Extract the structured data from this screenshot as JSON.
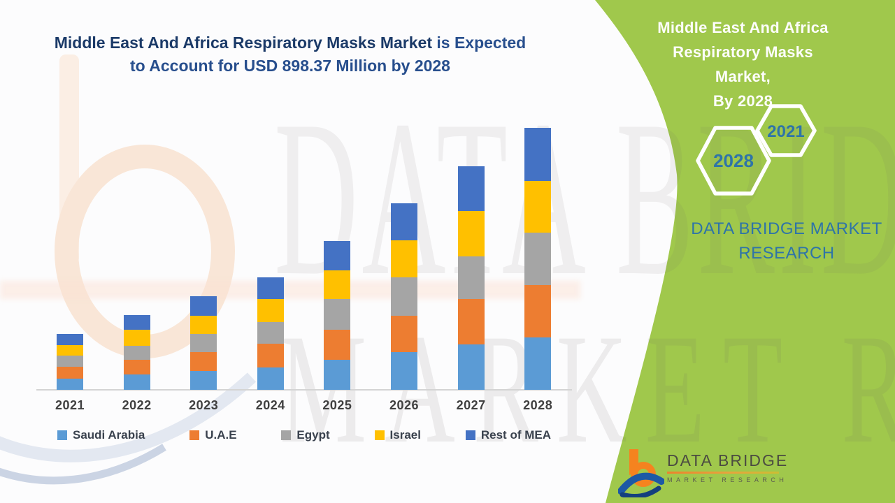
{
  "page": {
    "background": "#FCFCFD",
    "accent_green": "#A0C84C",
    "accent_steel_blue": "#2E74A8"
  },
  "heading": {
    "line1_strong": "Middle East And Africa Respiratory Masks Market",
    "line1_rest": " is Expected",
    "line2": "to Account for USD 898.37 Million by 2028",
    "strong_color": "#1B3A68",
    "rest_color": "#274E8D"
  },
  "chart_data": {
    "type": "bar",
    "stacked": true,
    "unit": "USD Million",
    "title": "Middle East And Africa Respiratory Masks Market, By 2028",
    "categories": [
      "2021",
      "2022",
      "2023",
      "2024",
      "2025",
      "2026",
      "2027",
      "2028"
    ],
    "series": [
      {
        "name": "Saudi Arabia",
        "color": "#5B9BD5",
        "values": [
          38.3,
          51.7,
          64.6,
          76.5,
          103.5,
          129.1,
          157.1,
          181.0
        ]
      },
      {
        "name": "U.A.E",
        "color": "#ED7D31",
        "values": [
          41.4,
          51.9,
          65.3,
          82.7,
          102.8,
          125.0,
          153.7,
          179.4
        ]
      },
      {
        "name": "Egypt",
        "color": "#A5A5A5",
        "values": [
          38.3,
          48.5,
          61.4,
          72.7,
          106.2,
          131.5,
          147.5,
          179.3
        ]
      },
      {
        "name": "Israel",
        "color": "#FFC000",
        "values": [
          35.1,
          55.0,
          63.6,
          78.9,
          97.1,
          127.7,
          155.4,
          177.7
        ]
      },
      {
        "name": "Rest of MEA",
        "color": "#4472C4",
        "values": [
          39.0,
          49.5,
          67.9,
          75.6,
          102.1,
          127.4,
          153.0,
          181.0
        ]
      }
    ],
    "totals_estimated": [
      192.1,
      256.6,
      322.8,
      386.4,
      511.7,
      640.7,
      766.7,
      898.37
    ],
    "highlight_total_2028": "USD 898.37 Million",
    "legend_position": "bottom",
    "value_axis_visible": false,
    "gridlines": false
  },
  "side_panel": {
    "title_lines": [
      "Middle East And Africa",
      "Respiratory Masks Market,",
      "By 2028"
    ],
    "hexagon_years": [
      "2021",
      "2028"
    ],
    "brand_lines": [
      "DATA BRIDGE MARKET",
      "RESEARCH"
    ]
  },
  "logo": {
    "name": "DATA BRIDGE",
    "subtitle": "MARKET RESEARCH"
  },
  "watermark": {
    "line1": "DATA BRIDGE",
    "line2": "MARKET RESEARCH"
  }
}
